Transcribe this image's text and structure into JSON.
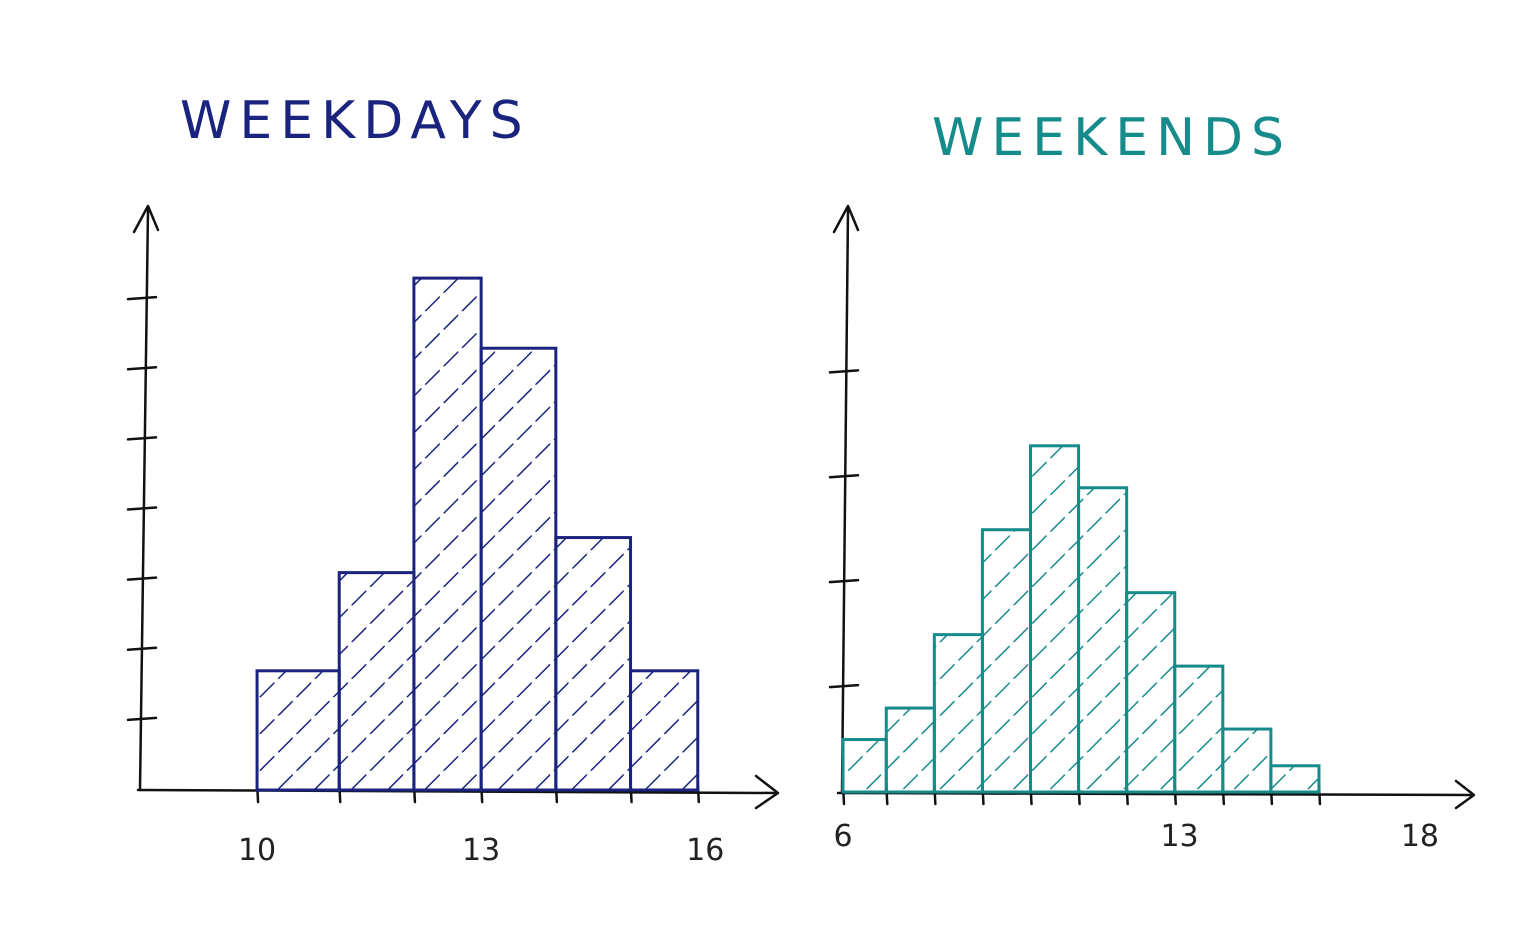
{
  "chart_data": [
    {
      "type": "bar",
      "title": "WEEKDAYS",
      "color": "#1a237e",
      "x_tick_labels": [
        {
          "value": 10,
          "label": "10"
        },
        {
          "value": 13,
          "label": "13"
        },
        {
          "value": 16,
          "label": "16"
        }
      ],
      "xlim": [
        8.5,
        16.8
      ],
      "ylim": [
        0,
        8.2
      ],
      "y_ticks": [
        1,
        2,
        3,
        4,
        5,
        6,
        7
      ],
      "bins": [
        {
          "start": 10.0,
          "end": 11.1,
          "value": 1.7
        },
        {
          "start": 11.1,
          "end": 12.1,
          "value": 3.1
        },
        {
          "start": 12.1,
          "end": 13.0,
          "value": 7.3
        },
        {
          "start": 13.0,
          "end": 14.0,
          "value": 6.3
        },
        {
          "start": 14.0,
          "end": 15.0,
          "value": 3.6
        },
        {
          "start": 15.0,
          "end": 15.9,
          "value": 1.7
        }
      ]
    },
    {
      "type": "bar",
      "title": "WEEKENDS",
      "color": "#168b8b",
      "x_tick_labels": [
        {
          "value": 6,
          "label": "6"
        },
        {
          "value": 13,
          "label": "13"
        },
        {
          "value": 18,
          "label": "18"
        }
      ],
      "xlim": [
        6,
        19.0
      ],
      "ylim": [
        0,
        5.5
      ],
      "y_ticks": [
        1,
        2,
        3,
        4
      ],
      "bins": [
        {
          "start": 6.0,
          "end": 6.9,
          "value": 0.5
        },
        {
          "start": 6.9,
          "end": 7.9,
          "value": 0.8
        },
        {
          "start": 7.9,
          "end": 8.9,
          "value": 1.5
        },
        {
          "start": 8.9,
          "end": 9.9,
          "value": 2.5
        },
        {
          "start": 9.9,
          "end": 10.9,
          "value": 3.3
        },
        {
          "start": 10.9,
          "end": 11.9,
          "value": 2.9
        },
        {
          "start": 11.9,
          "end": 12.9,
          "value": 1.9
        },
        {
          "start": 12.9,
          "end": 13.9,
          "value": 1.2
        },
        {
          "start": 13.9,
          "end": 14.9,
          "value": 0.6
        },
        {
          "start": 14.9,
          "end": 15.9,
          "value": 0.25
        }
      ]
    }
  ]
}
